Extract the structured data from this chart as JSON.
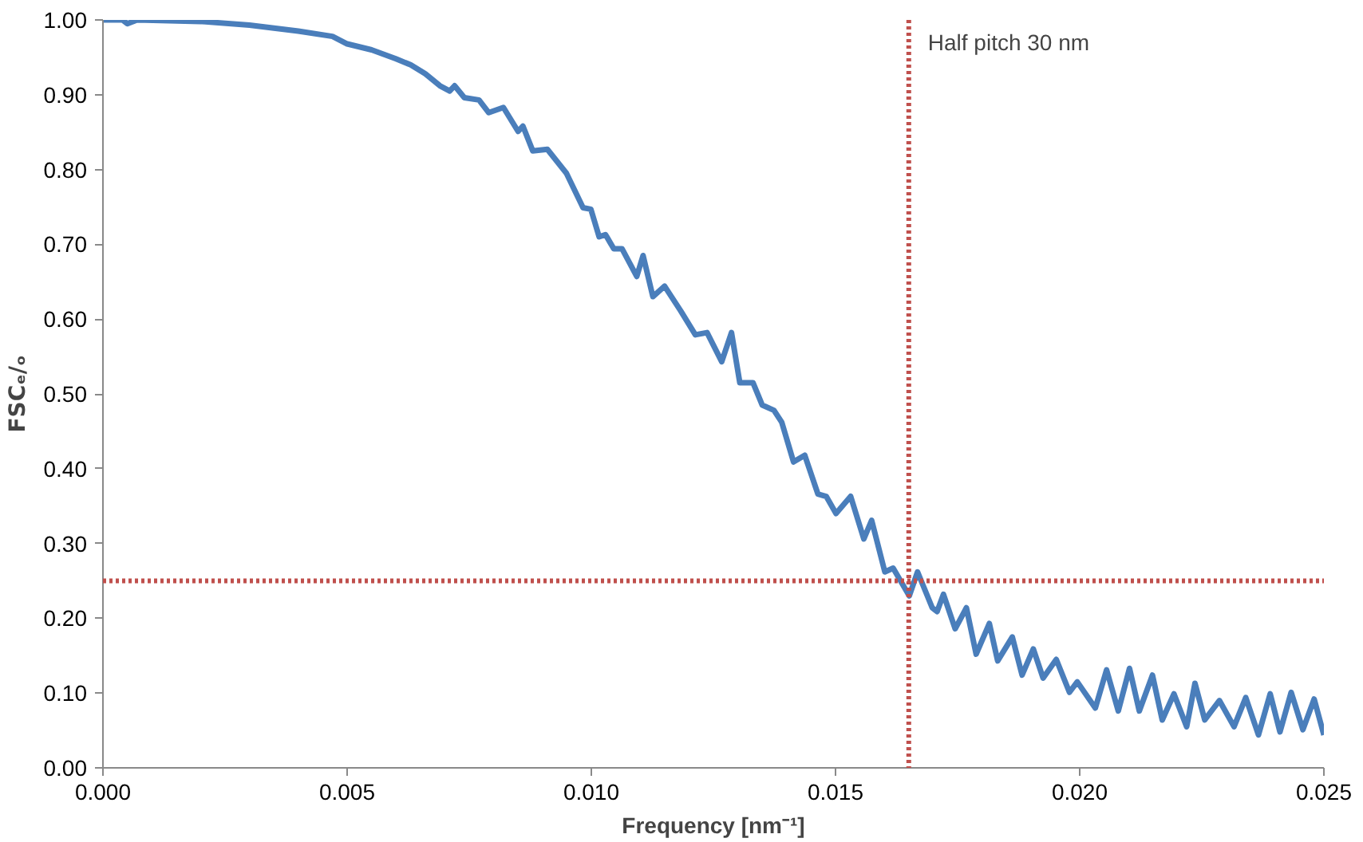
{
  "chart_data": {
    "type": "line",
    "xlabel": "Frequency [nm⁻¹]",
    "ylabel": "FSCₑ/ₒ",
    "xlim": [
      0,
      0.025
    ],
    "ylim": [
      0,
      1
    ],
    "xticks": [
      {
        "value": 0,
        "label": "0.000"
      },
      {
        "value": 0.005,
        "label": "0.005"
      },
      {
        "value": 0.01,
        "label": "0.010"
      },
      {
        "value": 0.015,
        "label": "0.015"
      },
      {
        "value": 0.02,
        "label": "0.020"
      },
      {
        "value": 0.025,
        "label": "0.025"
      }
    ],
    "yticks": [
      {
        "value": 0,
        "label": "0.00"
      },
      {
        "value": 0.1,
        "label": "0.10"
      },
      {
        "value": 0.2,
        "label": "0.20"
      },
      {
        "value": 0.3,
        "label": "0.30"
      },
      {
        "value": 0.4,
        "label": "0.40"
      },
      {
        "value": 0.5,
        "label": "0.50"
      },
      {
        "value": 0.6,
        "label": "0.60"
      },
      {
        "value": 0.7,
        "label": "0.70"
      },
      {
        "value": 0.8,
        "label": "0.80"
      },
      {
        "value": 0.9,
        "label": "0.90"
      },
      {
        "value": 1.0,
        "label": "1.00"
      }
    ],
    "grid": false,
    "marker": "none",
    "line_style": "solid",
    "ref_lines": [
      {
        "axis": "x",
        "value": 0.0165,
        "label": "Half pitch 30 nm",
        "color": "#c0504d",
        "line_style": "dotted"
      },
      {
        "axis": "y",
        "value": 0.25,
        "label": null,
        "color": "#c0504d",
        "line_style": "dotted"
      }
    ],
    "series": [
      {
        "color": "#4a7ebb",
        "x": [
          0,
          0.0004,
          0.0005,
          0.0007,
          0.002,
          0.003,
          0.004,
          0.0047,
          0.005,
          0.0055,
          0.006,
          0.0063,
          0.0066,
          0.0069,
          0.0071,
          0.0072,
          0.0074,
          0.0077,
          0.0079,
          0.0082,
          0.0085,
          0.0086,
          0.0088,
          0.0091,
          0.00949,
          0.00983,
          0.00999,
          0.01016,
          0.01029,
          0.01046,
          0.01063,
          0.01093,
          0.01106,
          0.01126,
          0.0115,
          0.01183,
          0.01213,
          0.01237,
          0.01267,
          0.01287,
          0.01304,
          0.01331,
          0.0135,
          0.01374,
          0.0139,
          0.01414,
          0.01437,
          0.01464,
          0.01481,
          0.01501,
          0.01531,
          0.01558,
          0.01574,
          0.01601,
          0.01618,
          0.01651,
          0.01668,
          0.01698,
          0.01708,
          0.01721,
          0.01745,
          0.01768,
          0.01788,
          0.01815,
          0.01832,
          0.01862,
          0.01882,
          0.01905,
          0.01925,
          0.01952,
          0.01979,
          0.01995,
          0.02032,
          0.02055,
          0.02079,
          0.02102,
          0.02122,
          0.02149,
          0.02169,
          0.02193,
          0.02219,
          0.02236,
          0.02256,
          0.02286,
          0.02316,
          0.0234,
          0.02366,
          0.0239,
          0.0241,
          0.02433,
          0.02457,
          0.0248,
          0.025
        ],
        "values": [
          1.0,
          1.0,
          0.995,
          1.0,
          0.998,
          0.993,
          0.985,
          0.978,
          0.968,
          0.96,
          0.948,
          0.94,
          0.928,
          0.912,
          0.905,
          0.912,
          0.896,
          0.893,
          0.876,
          0.883,
          0.851,
          0.858,
          0.825,
          0.827,
          0.795,
          0.749,
          0.747,
          0.71,
          0.713,
          0.694,
          0.694,
          0.657,
          0.685,
          0.63,
          0.644,
          0.611,
          0.579,
          0.582,
          0.543,
          0.582,
          0.515,
          0.515,
          0.485,
          0.478,
          0.462,
          0.409,
          0.418,
          0.366,
          0.363,
          0.34,
          0.363,
          0.306,
          0.331,
          0.262,
          0.267,
          0.23,
          0.262,
          0.214,
          0.209,
          0.232,
          0.186,
          0.214,
          0.152,
          0.193,
          0.143,
          0.175,
          0.124,
          0.159,
          0.12,
          0.145,
          0.101,
          0.115,
          0.08,
          0.131,
          0.076,
          0.133,
          0.076,
          0.124,
          0.064,
          0.099,
          0.055,
          0.113,
          0.064,
          0.09,
          0.055,
          0.094,
          0.044,
          0.099,
          0.048,
          0.101,
          0.051,
          0.092,
          0.044
        ]
      }
    ]
  }
}
